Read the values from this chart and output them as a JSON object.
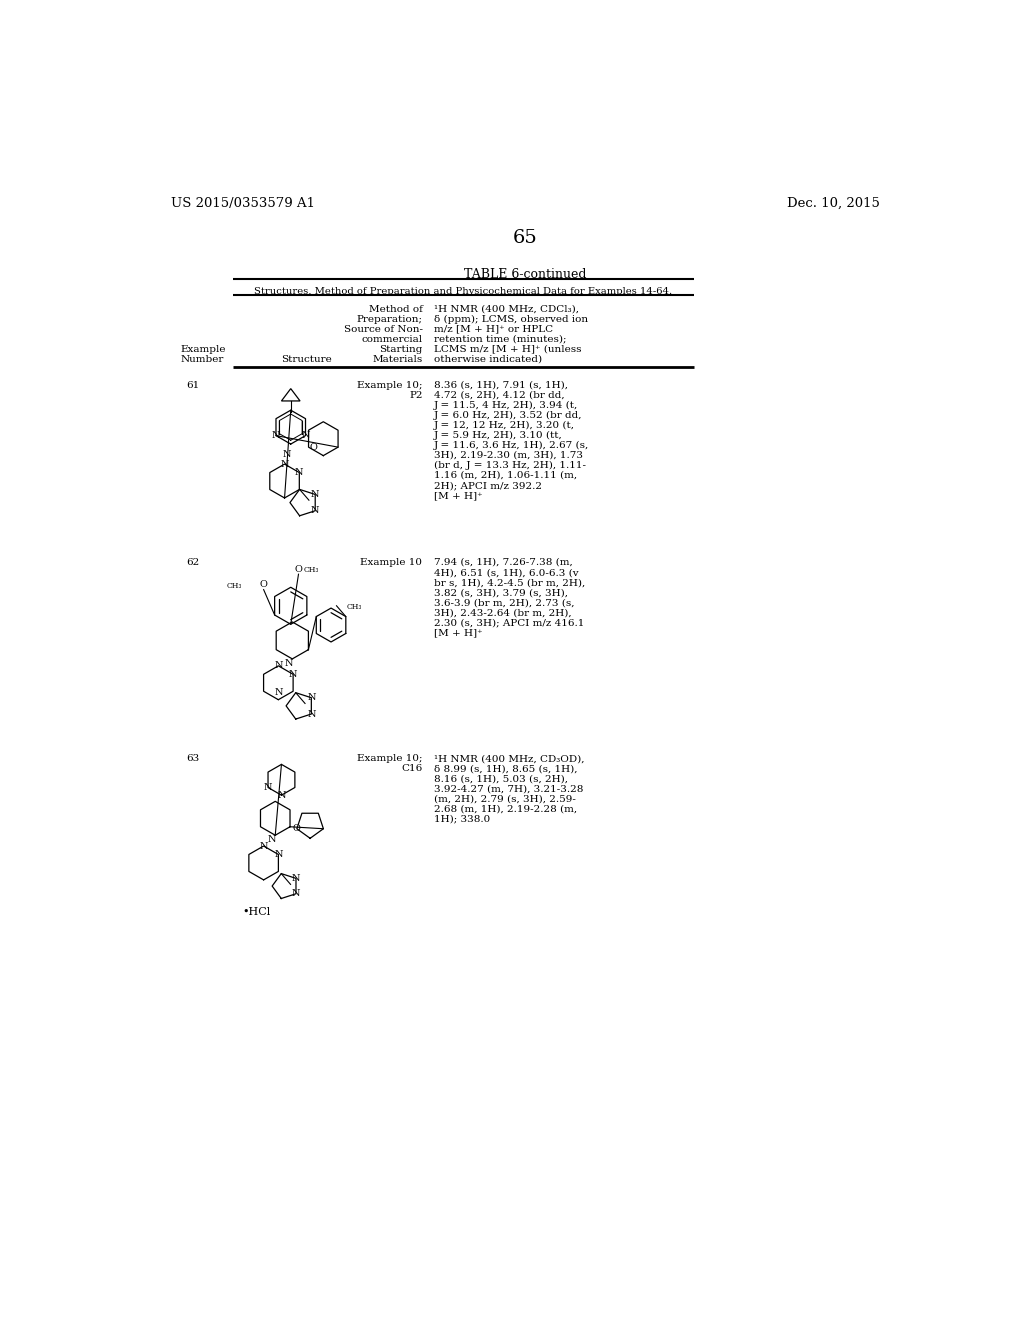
{
  "background_color": "#ffffff",
  "page_number": "65",
  "header_left": "US 2015/0353579 A1",
  "header_right": "Dec. 10, 2015",
  "table_title": "TABLE 6-continued",
  "table_subtitle": "Structures, Method of Preparation and Physicochemical Data for Examples 14-64.",
  "nmr61": [
    "8.36 (s, 1H), 7.91 (s, 1H),",
    "4.72 (s, 2H), 4.12 (br dd,",
    "J = 11.5, 4 Hz, 2H), 3.94 (t,",
    "J = 6.0 Hz, 2H), 3.52 (br dd,",
    "J = 12, 12 Hz, 2H), 3.20 (t,",
    "J = 5.9 Hz, 2H), 3.10 (tt,",
    "J = 11.6, 3.6 Hz, 1H), 2.67 (s,",
    "3H), 2.19-2.30 (m, 3H), 1.73",
    "(br d, J = 13.3 Hz, 2H), 1.11-",
    "1.16 (m, 2H), 1.06-1.11 (m,",
    "2H); APCI m/z 392.2",
    "[M + H]⁺"
  ],
  "prep61": [
    "Example 10;",
    "P2"
  ],
  "nmr62": [
    "7.94 (s, 1H), 7.26-7.38 (m,",
    "4H), 6.51 (s, 1H), 6.0-6.3 (v",
    "br s, 1H), 4.2-4.5 (br m, 2H),",
    "3.82 (s, 3H), 3.79 (s, 3H),",
    "3.6-3.9 (br m, 2H), 2.73 (s,",
    "3H), 2.43-2.64 (br m, 2H),",
    "2.30 (s, 3H); APCI m/z 416.1",
    "[M + H]⁺"
  ],
  "prep62": [
    "Example 10"
  ],
  "nmr63": [
    "¹H NMR (400 MHz, CD₃OD),",
    "δ 8.99 (s, 1H), 8.65 (s, 1H),",
    "8.16 (s, 1H), 5.03 (s, 2H),",
    "3.92-4.27 (m, 7H), 3.21-3.28",
    "(m, 2H), 2.79 (s, 3H), 2.59-",
    "2.68 (m, 1H), 2.19-2.28 (m,",
    "1H); 338.0"
  ],
  "prep63": [
    "Example 10;",
    "C16"
  ]
}
